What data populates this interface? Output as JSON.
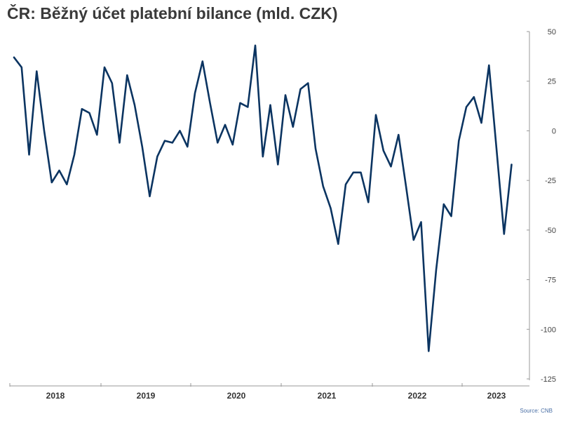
{
  "chart_data": {
    "type": "line",
    "title": "ČR: Běžný účet platební bilance (mld. CZK)",
    "source": "Source: CNB",
    "xlabel": "",
    "ylabel": "",
    "ylim": [
      -125,
      50
    ],
    "yticks": [
      50,
      25,
      0,
      -25,
      -50,
      -75,
      -100,
      -125
    ],
    "year_labels": [
      "2018",
      "2019",
      "2020",
      "2021",
      "2022",
      "2023"
    ],
    "colors": {
      "line": "#0b3461",
      "axis": "#999999"
    },
    "grid": false,
    "legend": "none",
    "series": [
      {
        "values": [
          37,
          32,
          -12,
          30,
          0,
          -26,
          -20,
          -27,
          -12,
          11,
          9,
          -2,
          32,
          24,
          -6,
          28,
          13,
          -8,
          -33,
          -13,
          -5,
          -6,
          0,
          -8,
          19,
          35,
          14,
          -6,
          3,
          -7,
          14,
          12,
          43,
          -13,
          13,
          -17,
          18,
          2,
          21,
          24,
          -9,
          -28,
          -39,
          -57,
          -27,
          -21,
          -21,
          -36,
          8,
          -10,
          -18,
          -2,
          -28,
          -55,
          -46,
          -111,
          -70,
          -37,
          -43,
          -5,
          12,
          17,
          4,
          33,
          -9,
          -52,
          -17
        ]
      }
    ]
  }
}
